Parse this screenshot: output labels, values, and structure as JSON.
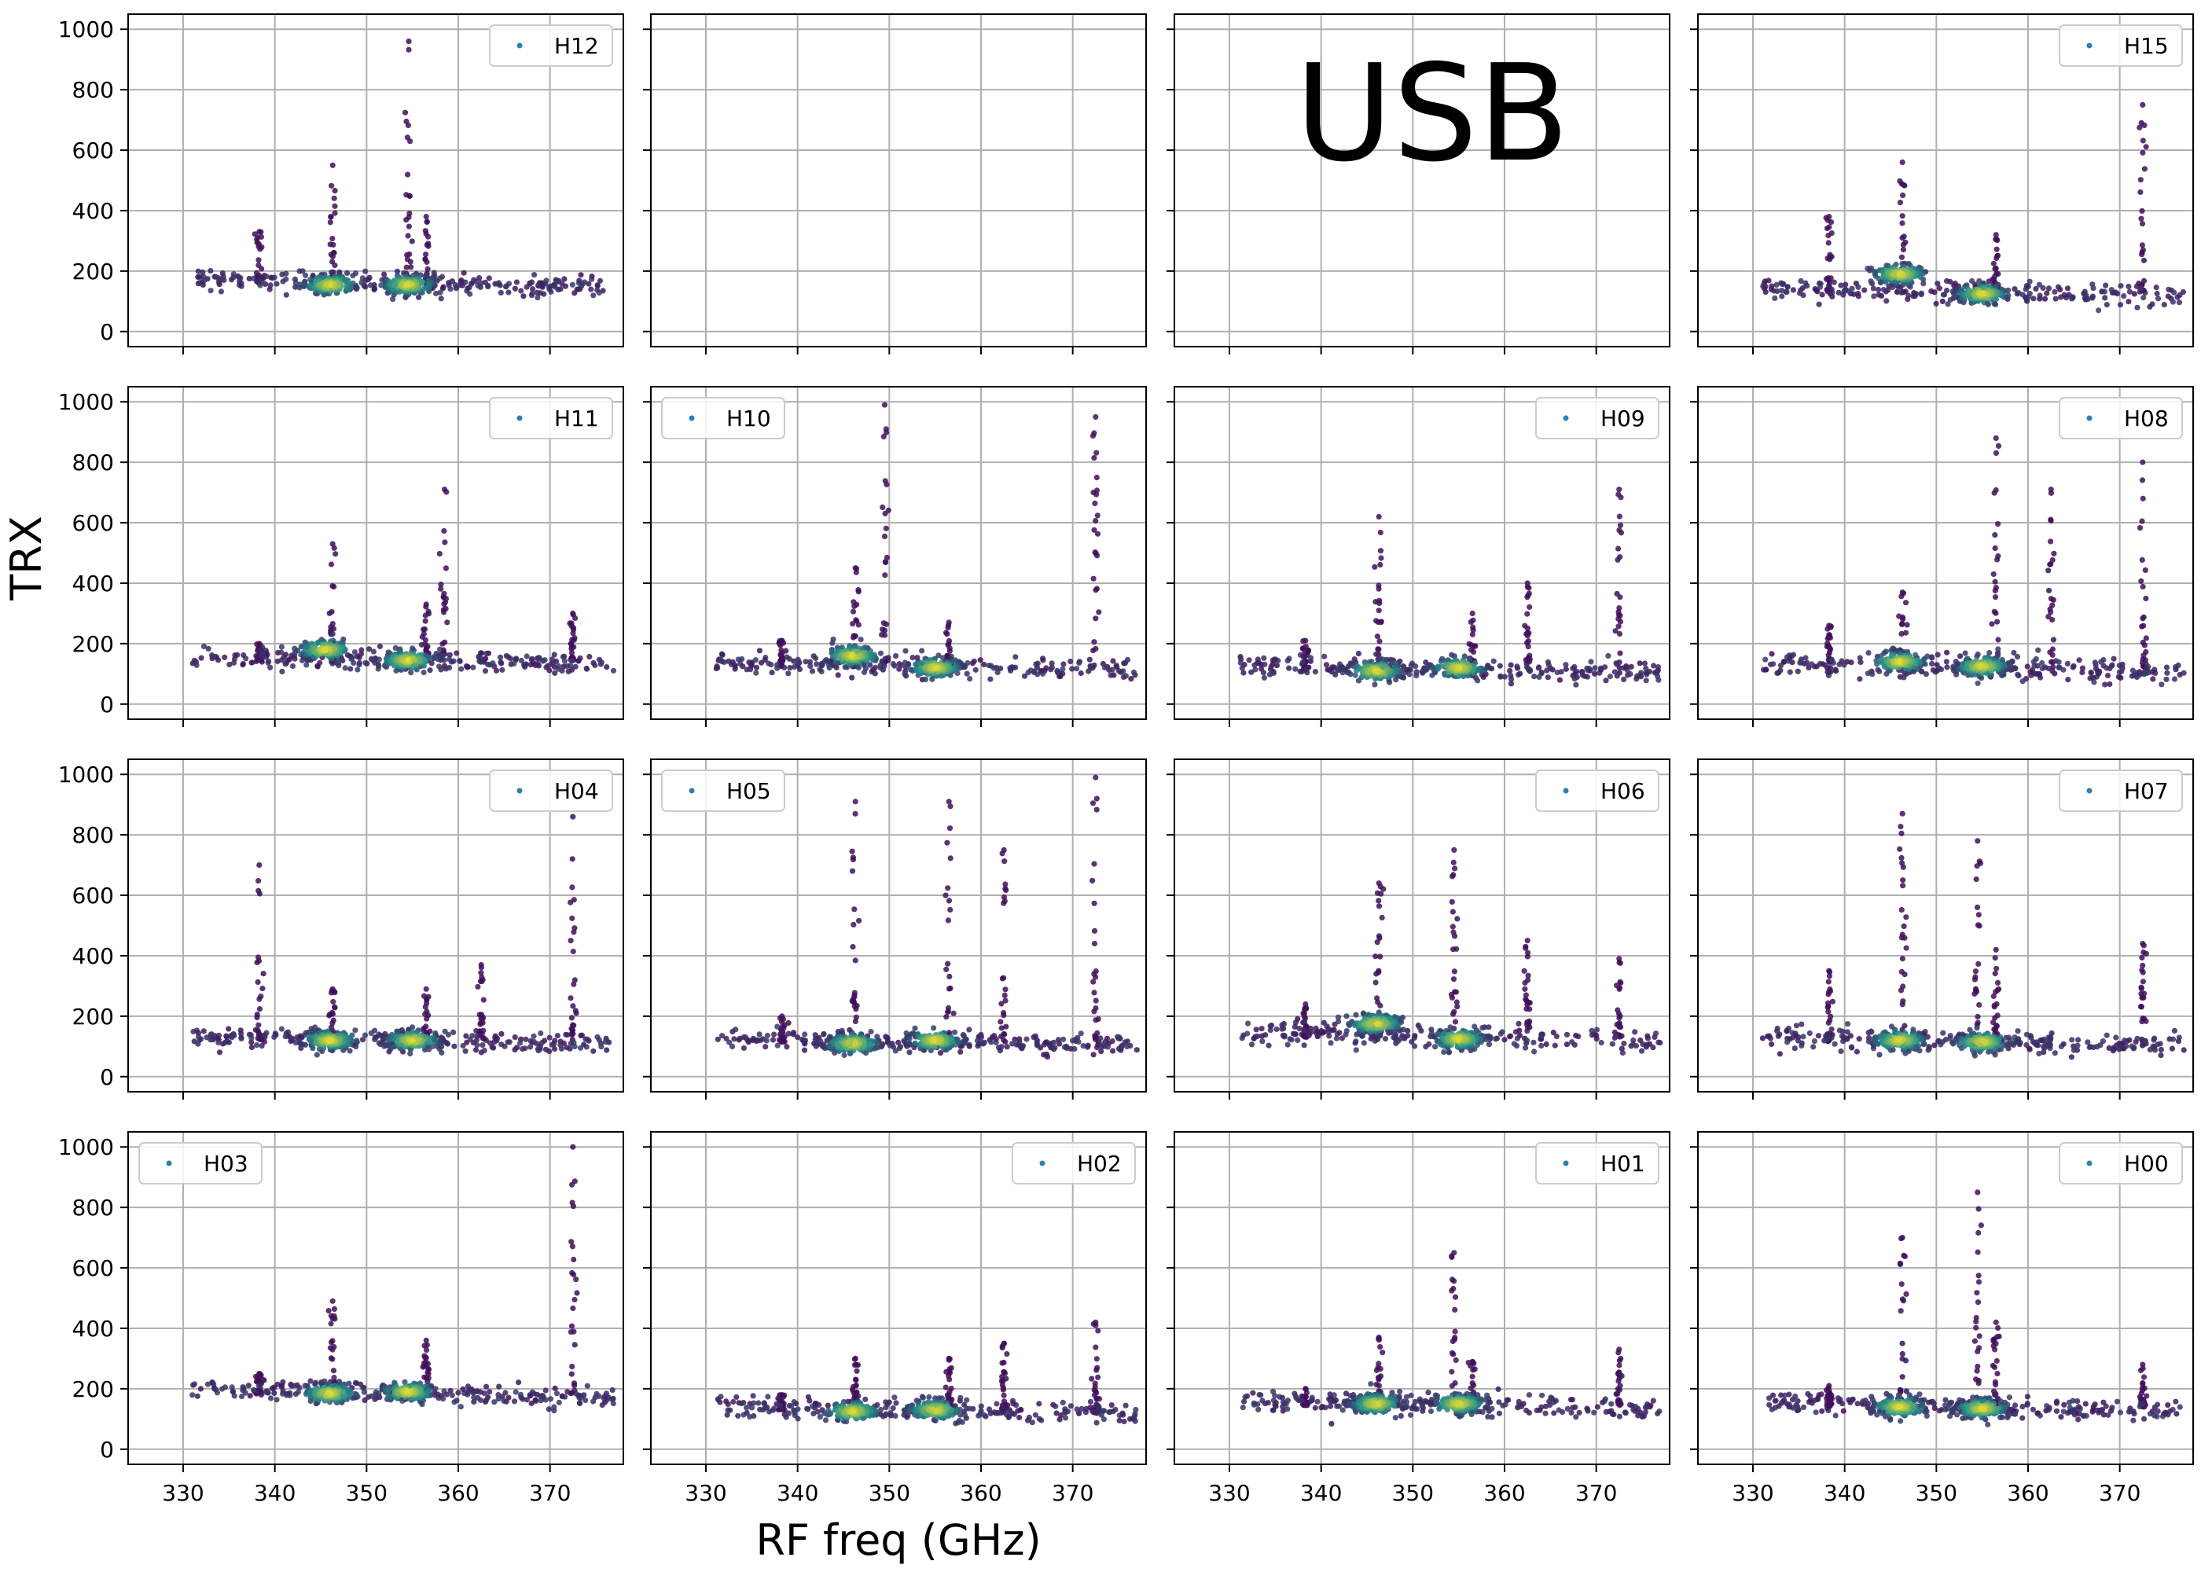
{
  "figure": {
    "ylabel": "TRX",
    "xlabel": "RF freq (GHz)",
    "annotation": "USB"
  },
  "style": {
    "grid_color": "#b0b0b0",
    "axis_color": "#000000",
    "background": "#ffffff",
    "colormap": "viridis",
    "point_low_color": "#440154",
    "point_mid_color": "#21918c",
    "point_high_color": "#fde725",
    "legend_marker_color": "#2c7fb8"
  },
  "chart_data": {
    "type": "scatter",
    "layout": "4x4 grid, shared axes",
    "xlim": [
      324,
      378
    ],
    "ylim": [
      -50,
      1050
    ],
    "xticks": [
      330,
      340,
      350,
      360,
      370
    ],
    "yticks": [
      0,
      200,
      400,
      600,
      800,
      1000
    ],
    "grid": true,
    "color_encoding": "point density (purple = sparse, yellow = dense)",
    "panels": [
      {
        "row": 0,
        "col": 0,
        "name": "H12",
        "legend": "top-right",
        "has_data": true,
        "base_trx": 160,
        "clusters": [
          {
            "x": 346,
            "trx": 155
          },
          {
            "x": 354.5,
            "trx": 155
          }
        ],
        "spikes": [
          {
            "x": 338.3,
            "to": 330
          },
          {
            "x": 346.3,
            "to": 550
          },
          {
            "x": 354.6,
            "to": 960
          },
          {
            "x": 356.5,
            "to": 380
          }
        ]
      },
      {
        "row": 0,
        "col": 1,
        "name": "",
        "legend": "none",
        "has_data": false
      },
      {
        "row": 0,
        "col": 2,
        "name": "",
        "legend": "none",
        "has_data": false
      },
      {
        "row": 0,
        "col": 3,
        "name": "H15",
        "legend": "top-right",
        "has_data": true,
        "base_trx": 130,
        "clusters": [
          {
            "x": 346,
            "trx": 190
          },
          {
            "x": 355,
            "trx": 125
          }
        ],
        "spikes": [
          {
            "x": 338.3,
            "to": 380
          },
          {
            "x": 346.3,
            "to": 560
          },
          {
            "x": 356.5,
            "to": 320
          },
          {
            "x": 372.5,
            "to": 750
          }
        ]
      },
      {
        "row": 1,
        "col": 0,
        "name": "H11",
        "legend": "top-right",
        "has_data": true,
        "base_trx": 145,
        "clusters": [
          {
            "x": 345.5,
            "trx": 180
          },
          {
            "x": 354.5,
            "trx": 145
          }
        ],
        "spikes": [
          {
            "x": 338.3,
            "to": 200
          },
          {
            "x": 346.3,
            "to": 530
          },
          {
            "x": 356.5,
            "to": 330
          },
          {
            "x": 358.5,
            "to": 710
          },
          {
            "x": 372.5,
            "to": 300
          }
        ]
      },
      {
        "row": 1,
        "col": 1,
        "name": "H10",
        "legend": "top-left",
        "has_data": true,
        "base_trx": 125,
        "clusters": [
          {
            "x": 346,
            "trx": 160
          },
          {
            "x": 355,
            "trx": 120
          }
        ],
        "spikes": [
          {
            "x": 338.3,
            "to": 210
          },
          {
            "x": 346.3,
            "to": 450
          },
          {
            "x": 349.5,
            "to": 990
          },
          {
            "x": 356.5,
            "to": 270
          },
          {
            "x": 372.5,
            "to": 950
          }
        ]
      },
      {
        "row": 1,
        "col": 2,
        "name": "H09",
        "legend": "top-right",
        "has_data": true,
        "base_trx": 115,
        "clusters": [
          {
            "x": 346,
            "trx": 110
          },
          {
            "x": 355,
            "trx": 120
          }
        ],
        "spikes": [
          {
            "x": 338.3,
            "to": 210
          },
          {
            "x": 346.3,
            "to": 620
          },
          {
            "x": 356.5,
            "to": 300
          },
          {
            "x": 362.5,
            "to": 400
          },
          {
            "x": 372.5,
            "to": 710
          }
        ]
      },
      {
        "row": 1,
        "col": 3,
        "name": "H08",
        "legend": "top-right",
        "has_data": true,
        "base_trx": 120,
        "clusters": [
          {
            "x": 346,
            "trx": 140
          },
          {
            "x": 355,
            "trx": 125
          }
        ],
        "spikes": [
          {
            "x": 338.3,
            "to": 260
          },
          {
            "x": 346.3,
            "to": 370
          },
          {
            "x": 356.5,
            "to": 880
          },
          {
            "x": 362.5,
            "to": 710
          },
          {
            "x": 372.5,
            "to": 800
          }
        ]
      },
      {
        "row": 2,
        "col": 0,
        "name": "H04",
        "legend": "top-right",
        "has_data": true,
        "base_trx": 120,
        "clusters": [
          {
            "x": 346,
            "trx": 120
          },
          {
            "x": 355,
            "trx": 120
          }
        ],
        "spikes": [
          {
            "x": 338.3,
            "to": 700
          },
          {
            "x": 346.3,
            "to": 290
          },
          {
            "x": 356.5,
            "to": 290
          },
          {
            "x": 362.5,
            "to": 370
          },
          {
            "x": 372.5,
            "to": 860
          }
        ]
      },
      {
        "row": 2,
        "col": 1,
        "name": "H05",
        "legend": "top-left",
        "has_data": true,
        "base_trx": 115,
        "clusters": [
          {
            "x": 346,
            "trx": 110
          },
          {
            "x": 355,
            "trx": 120
          }
        ],
        "spikes": [
          {
            "x": 338.3,
            "to": 200
          },
          {
            "x": 346.3,
            "to": 910
          },
          {
            "x": 356.5,
            "to": 910
          },
          {
            "x": 362.5,
            "to": 750
          },
          {
            "x": 372.5,
            "to": 990
          }
        ]
      },
      {
        "row": 2,
        "col": 2,
        "name": "H06",
        "legend": "top-right",
        "has_data": true,
        "base_trx": 130,
        "clusters": [
          {
            "x": 346,
            "trx": 175
          },
          {
            "x": 355,
            "trx": 125
          }
        ],
        "spikes": [
          {
            "x": 338.3,
            "to": 240
          },
          {
            "x": 346.3,
            "to": 640
          },
          {
            "x": 354.5,
            "to": 750
          },
          {
            "x": 362.5,
            "to": 450
          },
          {
            "x": 372.5,
            "to": 390
          }
        ]
      },
      {
        "row": 2,
        "col": 3,
        "name": "H07",
        "legend": "top-right",
        "has_data": true,
        "base_trx": 115,
        "clusters": [
          {
            "x": 346,
            "trx": 120
          },
          {
            "x": 355,
            "trx": 115
          }
        ],
        "spikes": [
          {
            "x": 338.3,
            "to": 350
          },
          {
            "x": 346.3,
            "to": 870
          },
          {
            "x": 354.5,
            "to": 780
          },
          {
            "x": 356.5,
            "to": 420
          },
          {
            "x": 372.5,
            "to": 440
          }
        ]
      },
      {
        "row": 3,
        "col": 0,
        "name": "H03",
        "legend": "top-left",
        "has_data": true,
        "base_trx": 185,
        "clusters": [
          {
            "x": 346,
            "trx": 185
          },
          {
            "x": 354.5,
            "trx": 190
          }
        ],
        "spikes": [
          {
            "x": 338.3,
            "to": 250
          },
          {
            "x": 346.3,
            "to": 490
          },
          {
            "x": 356.5,
            "to": 360
          },
          {
            "x": 372.5,
            "to": 1000
          }
        ]
      },
      {
        "row": 3,
        "col": 1,
        "name": "H02",
        "legend": "top-right",
        "has_data": true,
        "base_trx": 130,
        "clusters": [
          {
            "x": 346,
            "trx": 125
          },
          {
            "x": 355,
            "trx": 130
          }
        ],
        "spikes": [
          {
            "x": 338.3,
            "to": 180
          },
          {
            "x": 346.3,
            "to": 300
          },
          {
            "x": 356.5,
            "to": 300
          },
          {
            "x": 362.5,
            "to": 350
          },
          {
            "x": 372.5,
            "to": 420
          }
        ]
      },
      {
        "row": 3,
        "col": 2,
        "name": "H01",
        "legend": "top-right",
        "has_data": true,
        "base_trx": 145,
        "clusters": [
          {
            "x": 346,
            "trx": 150
          },
          {
            "x": 355,
            "trx": 150
          }
        ],
        "spikes": [
          {
            "x": 338.3,
            "to": 200
          },
          {
            "x": 346.3,
            "to": 370
          },
          {
            "x": 354.5,
            "to": 650
          },
          {
            "x": 356.5,
            "to": 290
          },
          {
            "x": 372.5,
            "to": 330
          }
        ]
      },
      {
        "row": 3,
        "col": 3,
        "name": "H00",
        "legend": "top-right",
        "has_data": true,
        "base_trx": 140,
        "clusters": [
          {
            "x": 346,
            "trx": 140
          },
          {
            "x": 355,
            "trx": 135
          }
        ],
        "spikes": [
          {
            "x": 338.3,
            "to": 210
          },
          {
            "x": 346.3,
            "to": 700
          },
          {
            "x": 354.5,
            "to": 850
          },
          {
            "x": 356.5,
            "to": 420
          },
          {
            "x": 372.5,
            "to": 280
          }
        ]
      }
    ]
  }
}
